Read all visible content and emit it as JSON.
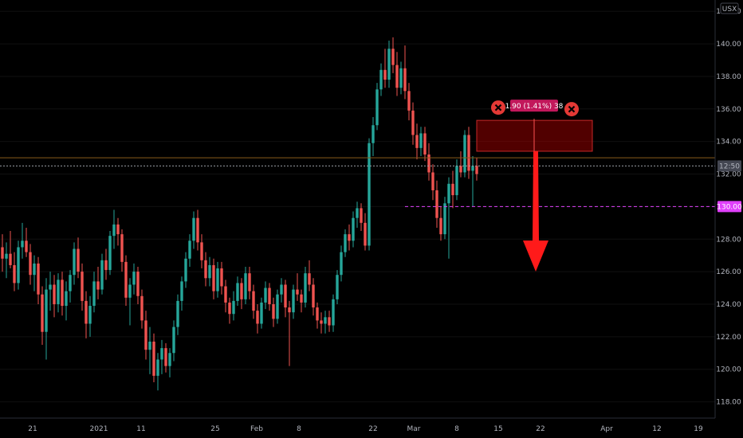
{
  "chart_data": {
    "type": "candlestick",
    "currency": "USX",
    "y_axis": {
      "min": 117,
      "max": 142.5,
      "ticks": [
        118,
        120,
        122,
        124,
        126,
        128,
        130,
        132,
        134,
        136,
        138,
        140,
        142
      ]
    },
    "x_ticks": [
      "21",
      "2021",
      "11",
      "25",
      "Feb",
      "8",
      "22",
      "Mar",
      "8",
      "15",
      "22",
      "Apr",
      "12",
      "19"
    ],
    "candles": [
      [
        127.5,
        128.3,
        126.0,
        126.8
      ],
      [
        126.8,
        127.8,
        125.6,
        127.1
      ],
      [
        127.1,
        128.5,
        126.2,
        126.4
      ],
      [
        126.4,
        127.2,
        124.8,
        125.3
      ],
      [
        125.3,
        127.9,
        124.9,
        127.5
      ],
      [
        127.5,
        129.0,
        126.8,
        127.9
      ],
      [
        127.9,
        128.7,
        126.9,
        127.2
      ],
      [
        127.2,
        127.7,
        125.2,
        125.8
      ],
      [
        125.8,
        127.0,
        124.8,
        126.5
      ],
      [
        126.5,
        126.9,
        124.0,
        124.6
      ],
      [
        124.6,
        125.1,
        121.5,
        122.3
      ],
      [
        122.3,
        125.6,
        120.6,
        124.9
      ],
      [
        124.9,
        126.0,
        123.6,
        125.2
      ],
      [
        125.2,
        125.8,
        123.2,
        124.0
      ],
      [
        124.0,
        125.9,
        123.5,
        125.5
      ],
      [
        125.5,
        126.0,
        123.3,
        123.9
      ],
      [
        123.9,
        125.4,
        123.0,
        124.8
      ],
      [
        124.8,
        126.1,
        124.1,
        125.8
      ],
      [
        125.8,
        127.8,
        125.2,
        127.4
      ],
      [
        127.4,
        128.1,
        125.6,
        126.0
      ],
      [
        126.0,
        126.5,
        123.6,
        124.2
      ],
      [
        124.2,
        124.8,
        121.9,
        122.8
      ],
      [
        122.8,
        124.5,
        122.0,
        123.9
      ],
      [
        123.9,
        126.0,
        123.5,
        125.4
      ],
      [
        125.4,
        126.3,
        124.3,
        124.9
      ],
      [
        124.9,
        127.1,
        124.6,
        126.7
      ],
      [
        126.7,
        127.4,
        125.5,
        126.1
      ],
      [
        126.1,
        128.5,
        125.8,
        128.2
      ],
      [
        128.2,
        129.8,
        127.4,
        128.9
      ],
      [
        128.9,
        129.3,
        127.6,
        128.3
      ],
      [
        128.3,
        128.6,
        126.0,
        126.6
      ],
      [
        126.6,
        127.0,
        123.9,
        124.4
      ],
      [
        124.4,
        125.6,
        122.7,
        125.2
      ],
      [
        125.2,
        126.5,
        124.6,
        126.0
      ],
      [
        126.0,
        126.3,
        124.0,
        124.5
      ],
      [
        124.5,
        124.9,
        122.5,
        123.0
      ],
      [
        123.0,
        123.6,
        120.6,
        121.2
      ],
      [
        121.2,
        122.6,
        119.7,
        121.7
      ],
      [
        121.7,
        122.2,
        119.2,
        119.6
      ],
      [
        119.6,
        121.0,
        118.7,
        120.6
      ],
      [
        120.6,
        121.8,
        119.7,
        121.3
      ],
      [
        121.3,
        121.6,
        119.8,
        120.2
      ],
      [
        120.2,
        121.3,
        119.5,
        121.0
      ],
      [
        121.0,
        123.0,
        120.5,
        122.6
      ],
      [
        122.6,
        124.6,
        122.1,
        124.2
      ],
      [
        124.2,
        125.7,
        123.6,
        125.4
      ],
      [
        125.4,
        127.2,
        125.0,
        126.8
      ],
      [
        126.8,
        128.3,
        126.3,
        127.9
      ],
      [
        127.9,
        129.7,
        127.4,
        129.3
      ],
      [
        129.3,
        129.8,
        127.3,
        127.8
      ],
      [
        127.8,
        128.3,
        126.2,
        126.7
      ],
      [
        126.7,
        127.2,
        125.1,
        125.6
      ],
      [
        125.6,
        126.9,
        125.1,
        126.4
      ],
      [
        126.4,
        126.8,
        124.3,
        124.8
      ],
      [
        124.8,
        126.6,
        124.4,
        126.2
      ],
      [
        126.2,
        126.6,
        124.6,
        125.1
      ],
      [
        125.1,
        125.5,
        123.5,
        124.1
      ],
      [
        124.1,
        124.4,
        122.8,
        123.4
      ],
      [
        123.4,
        124.8,
        123.0,
        124.2
      ],
      [
        124.2,
        125.7,
        123.9,
        125.3
      ],
      [
        125.3,
        125.6,
        123.7,
        124.3
      ],
      [
        124.3,
        126.3,
        124.0,
        125.9
      ],
      [
        125.9,
        126.3,
        124.3,
        124.8
      ],
      [
        124.8,
        125.2,
        123.1,
        123.6
      ],
      [
        123.6,
        124.0,
        122.2,
        122.8
      ],
      [
        122.8,
        124.4,
        122.5,
        124.1
      ],
      [
        124.1,
        125.4,
        123.7,
        125.0
      ],
      [
        125.0,
        125.3,
        123.6,
        124.0
      ],
      [
        124.0,
        124.4,
        122.6,
        123.1
      ],
      [
        123.1,
        124.9,
        122.8,
        124.6
      ],
      [
        124.6,
        125.6,
        124.1,
        125.2
      ],
      [
        125.2,
        125.5,
        123.2,
        123.8
      ],
      [
        123.8,
        124.2,
        120.2,
        123.5
      ],
      [
        123.5,
        125.2,
        123.1,
        124.9
      ],
      [
        124.9,
        125.9,
        124.2,
        124.6
      ],
      [
        124.6,
        124.9,
        123.5,
        124.1
      ],
      [
        124.1,
        126.3,
        123.8,
        125.9
      ],
      [
        125.9,
        126.7,
        124.8,
        125.2
      ],
      [
        125.2,
        125.6,
        123.3,
        123.8
      ],
      [
        123.8,
        124.1,
        122.5,
        123.0
      ],
      [
        123.0,
        123.5,
        122.2,
        122.8
      ],
      [
        122.8,
        123.6,
        122.2,
        123.2
      ],
      [
        123.2,
        123.6,
        122.3,
        122.7
      ],
      [
        122.7,
        124.6,
        122.3,
        124.3
      ],
      [
        124.3,
        126.1,
        124.0,
        125.8
      ],
      [
        125.8,
        127.6,
        125.4,
        127.2
      ],
      [
        127.2,
        128.6,
        126.9,
        128.3
      ],
      [
        128.3,
        128.9,
        127.3,
        127.9
      ],
      [
        127.9,
        129.7,
        127.5,
        129.3
      ],
      [
        129.3,
        130.3,
        128.7,
        129.9
      ],
      [
        129.9,
        130.2,
        128.5,
        129.0
      ],
      [
        129.0,
        129.6,
        127.3,
        127.6
      ],
      [
        127.6,
        134.2,
        127.3,
        133.9
      ],
      [
        133.9,
        135.5,
        133.1,
        135.0
      ],
      [
        135.0,
        137.6,
        134.7,
        137.2
      ],
      [
        137.2,
        138.8,
        136.8,
        138.4
      ],
      [
        138.4,
        139.7,
        137.3,
        137.8
      ],
      [
        137.8,
        140.2,
        137.3,
        139.7
      ],
      [
        139.7,
        140.4,
        138.2,
        138.7
      ],
      [
        138.7,
        139.5,
        136.8,
        137.3
      ],
      [
        137.3,
        138.9,
        136.9,
        138.5
      ],
      [
        138.5,
        139.9,
        136.6,
        137.1
      ],
      [
        137.1,
        137.6,
        135.3,
        135.9
      ],
      [
        135.9,
        136.4,
        133.8,
        134.4
      ],
      [
        134.4,
        135.1,
        132.9,
        133.6
      ],
      [
        133.6,
        134.9,
        133.1,
        134.5
      ],
      [
        134.5,
        134.9,
        132.8,
        133.2
      ],
      [
        133.2,
        133.9,
        131.6,
        132.1
      ],
      [
        132.1,
        132.6,
        130.4,
        131.0
      ],
      [
        131.0,
        131.6,
        128.7,
        129.3
      ],
      [
        129.3,
        130.0,
        127.9,
        128.3
      ],
      [
        128.3,
        130.6,
        128.0,
        130.2
      ],
      [
        130.2,
        131.8,
        126.8,
        131.4
      ],
      [
        131.4,
        132.2,
        129.9,
        130.7
      ],
      [
        130.7,
        132.9,
        130.4,
        132.5
      ],
      [
        132.5,
        133.4,
        131.8,
        132.1
      ],
      [
        132.1,
        134.7,
        131.8,
        134.4
      ],
      [
        134.4,
        134.9,
        131.7,
        132.2
      ],
      [
        132.2,
        133.1,
        130.0,
        132.5
      ],
      [
        132.5,
        133.0,
        131.6,
        132.0
      ]
    ],
    "annotations": {
      "current_price_label": "12:50",
      "target_price_label": "130.00",
      "measure_label": "1.90 (1.41%) 38",
      "measure_range": [
        133.4,
        135.3
      ],
      "current_price": 132.5,
      "horizontal_line": 133.0,
      "target_line": 130.0
    },
    "colors": {
      "up": "#26a69a",
      "down": "#ef5350",
      "background": "#000000",
      "grid": "#1a1a1a",
      "target": "#e040fb",
      "arrow": "#ff1a1a",
      "badge": "#c2185b"
    }
  }
}
